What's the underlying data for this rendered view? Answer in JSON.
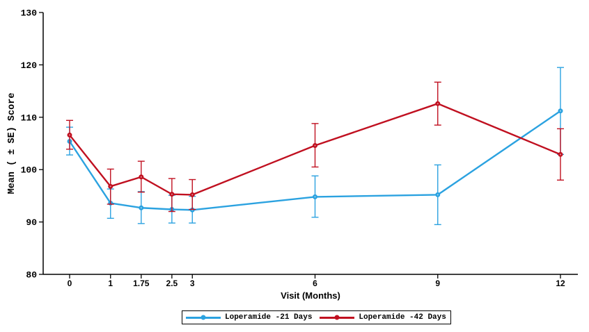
{
  "chart_data": {
    "type": "line",
    "title": "",
    "xlabel": "Visit (Months)",
    "ylabel": "Mean ( ± SE) Score",
    "ylim": [
      80,
      130
    ],
    "yticks": [
      80,
      90,
      100,
      110,
      120,
      130
    ],
    "xticks": [
      0,
      1,
      1.75,
      2.5,
      3,
      6,
      9,
      12
    ],
    "xtick_labels": [
      "0",
      "1",
      "1.75",
      "2.5",
      "3",
      "6",
      "9",
      "12"
    ],
    "grid": false,
    "error_bars": true,
    "legend_position": "bottom-center",
    "axis_color": "#000000",
    "series": [
      {
        "name": "Loperamide -21 Days",
        "color": "#2BA2E0",
        "marker": "circle",
        "points": [
          {
            "x": 0,
            "y": 105.4,
            "lo": 102.8,
            "hi": 108.1
          },
          {
            "x": 1,
            "y": 93.6,
            "lo": 90.7,
            "hi": 96.3
          },
          {
            "x": 1.75,
            "y": 92.7,
            "lo": 89.7,
            "hi": 95.8
          },
          {
            "x": 2.5,
            "y": 92.4,
            "lo": 89.8,
            "hi": 95.1
          },
          {
            "x": 3,
            "y": 92.3,
            "lo": 89.8,
            "hi": 94.9
          },
          {
            "x": 6,
            "y": 94.8,
            "lo": 90.9,
            "hi": 98.8
          },
          {
            "x": 9,
            "y": 95.2,
            "lo": 89.5,
            "hi": 100.9
          },
          {
            "x": 12,
            "y": 111.2,
            "lo": 102.9,
            "hi": 119.5
          }
        ]
      },
      {
        "name": "Loperamide -42 Days",
        "color": "#C01020",
        "marker": "circle",
        "points": [
          {
            "x": 0,
            "y": 106.6,
            "lo": 103.9,
            "hi": 109.4
          },
          {
            "x": 1,
            "y": 96.8,
            "lo": 93.4,
            "hi": 100.1
          },
          {
            "x": 1.75,
            "y": 98.6,
            "lo": 95.7,
            "hi": 101.6
          },
          {
            "x": 2.5,
            "y": 95.3,
            "lo": 92.0,
            "hi": 98.3
          },
          {
            "x": 3,
            "y": 95.2,
            "lo": 92.4,
            "hi": 98.1
          },
          {
            "x": 6,
            "y": 104.6,
            "lo": 100.5,
            "hi": 108.8
          },
          {
            "x": 9,
            "y": 112.6,
            "lo": 108.5,
            "hi": 116.7
          },
          {
            "x": 12,
            "y": 102.9,
            "lo": 98.0,
            "hi": 107.8
          }
        ]
      }
    ]
  }
}
